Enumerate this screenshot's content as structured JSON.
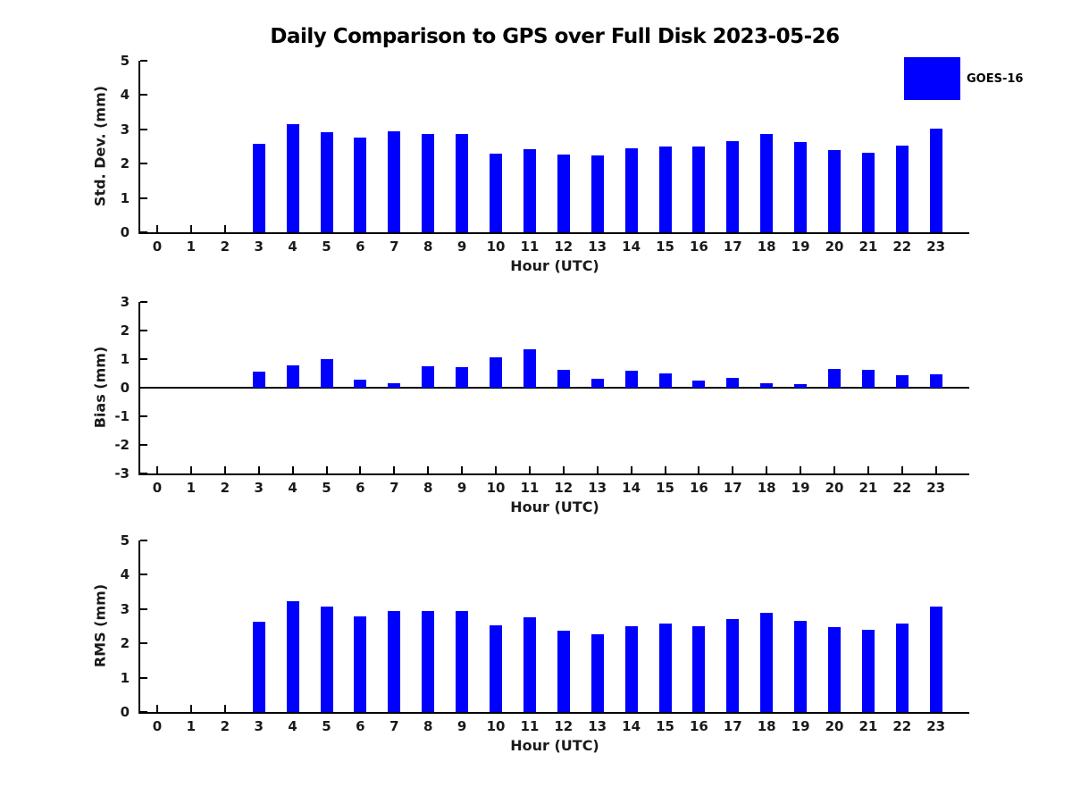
{
  "title": "Daily Comparison to GPS over Full Disk 2023-05-26",
  "legend": {
    "label": "GOES-16",
    "swatch_color": "#0000FF"
  },
  "colors": {
    "bar": "#0000FF",
    "axis": "#000000",
    "background": "#FFFFFF"
  },
  "chart_data": [
    {
      "type": "bar",
      "title": "",
      "ylabel": "Std. Dev. (mm)",
      "xlabel": "Hour (UTC)",
      "ylim": [
        0,
        5
      ],
      "yticks": [
        0,
        1,
        2,
        3,
        4,
        5
      ],
      "grid": false,
      "legend_position": "top-right",
      "legend_entries": [
        "GOES-16"
      ],
      "categories": [
        "0",
        "1",
        "2",
        "3",
        "4",
        "5",
        "6",
        "7",
        "8",
        "9",
        "10",
        "11",
        "12",
        "13",
        "14",
        "15",
        "16",
        "17",
        "18",
        "19",
        "20",
        "21",
        "22",
        "23"
      ],
      "series": [
        {
          "name": "GOES-16",
          "values": [
            null,
            null,
            null,
            2.58,
            3.15,
            2.92,
            2.77,
            2.94,
            2.86,
            2.86,
            2.29,
            2.41,
            2.26,
            2.23,
            2.44,
            2.49,
            2.5,
            2.65,
            2.86,
            2.63,
            2.39,
            2.31,
            2.52,
            3.02
          ]
        }
      ]
    },
    {
      "type": "bar",
      "title": "",
      "ylabel": "Bias (mm)",
      "xlabel": "Hour (UTC)",
      "ylim": [
        -3,
        3
      ],
      "yticks": [
        -3,
        -2,
        -1,
        0,
        1,
        2,
        3
      ],
      "grid": false,
      "zero_line": true,
      "categories": [
        "0",
        "1",
        "2",
        "3",
        "4",
        "5",
        "6",
        "7",
        "8",
        "9",
        "10",
        "11",
        "12",
        "13",
        "14",
        "15",
        "16",
        "17",
        "18",
        "19",
        "20",
        "21",
        "22",
        "23"
      ],
      "series": [
        {
          "name": "GOES-16",
          "values": [
            null,
            null,
            null,
            0.57,
            0.79,
            1.0,
            0.27,
            0.17,
            0.76,
            0.72,
            1.07,
            1.35,
            0.61,
            0.3,
            0.58,
            0.51,
            0.26,
            0.33,
            0.17,
            0.13,
            0.65,
            0.62,
            0.44,
            0.48
          ]
        }
      ]
    },
    {
      "type": "bar",
      "title": "",
      "ylabel": "RMS (mm)",
      "xlabel": "Hour (UTC)",
      "ylim": [
        0,
        5
      ],
      "yticks": [
        0,
        1,
        2,
        3,
        4,
        5
      ],
      "grid": false,
      "categories": [
        "0",
        "1",
        "2",
        "3",
        "4",
        "5",
        "6",
        "7",
        "8",
        "9",
        "10",
        "11",
        "12",
        "13",
        "14",
        "15",
        "16",
        "17",
        "18",
        "19",
        "20",
        "21",
        "22",
        "23"
      ],
      "series": [
        {
          "name": "GOES-16",
          "values": [
            null,
            null,
            null,
            2.62,
            3.24,
            3.08,
            2.78,
            2.95,
            2.95,
            2.95,
            2.52,
            2.77,
            2.36,
            2.26,
            2.5,
            2.57,
            2.5,
            2.71,
            2.88,
            2.65,
            2.47,
            2.4,
            2.57,
            3.07
          ]
        }
      ]
    }
  ]
}
